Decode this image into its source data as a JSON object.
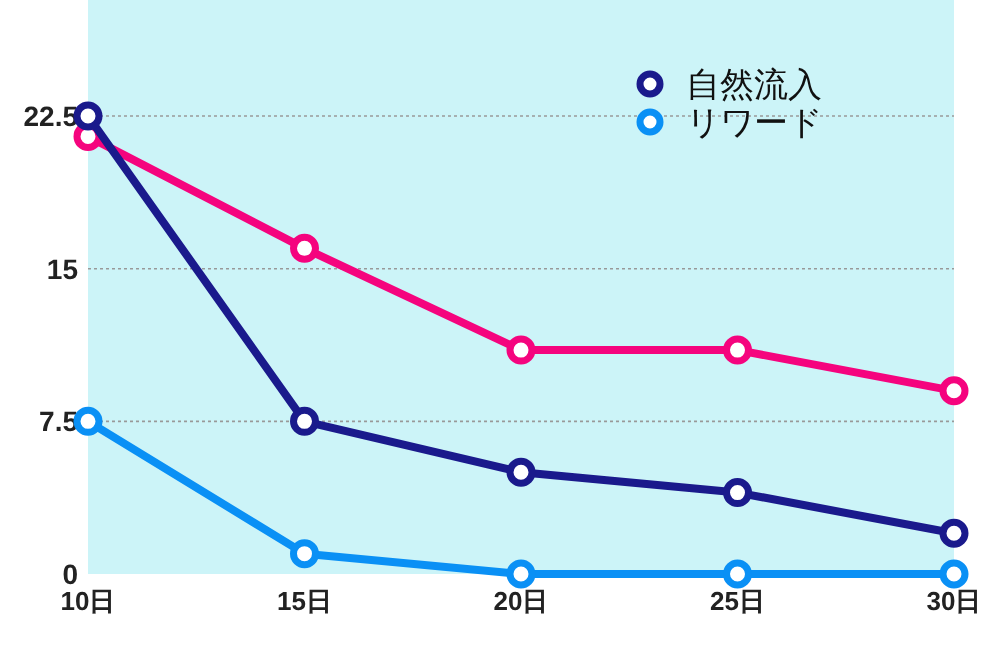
{
  "chart_data": {
    "type": "line",
    "categories": [
      "10日",
      "15日",
      "20日",
      "25日",
      "30日"
    ],
    "series": [
      {
        "color": "#f5047e",
        "values": [
          21.5,
          16,
          11,
          11,
          9
        ]
      },
      {
        "name": "自然流入",
        "color": "#1a1a8c",
        "values": [
          22.5,
          7.5,
          5,
          4,
          2
        ]
      },
      {
        "name": "リワード",
        "color": "#0a90f5",
        "values": [
          7.5,
          1,
          0,
          0,
          0
        ]
      }
    ],
    "ylim": [
      0,
      28.2
    ],
    "yticks": [
      0,
      7.5,
      15,
      22.5
    ],
    "grid": "y",
    "legend": "top right",
    "marker": "circle",
    "line_style": "solid"
  }
}
